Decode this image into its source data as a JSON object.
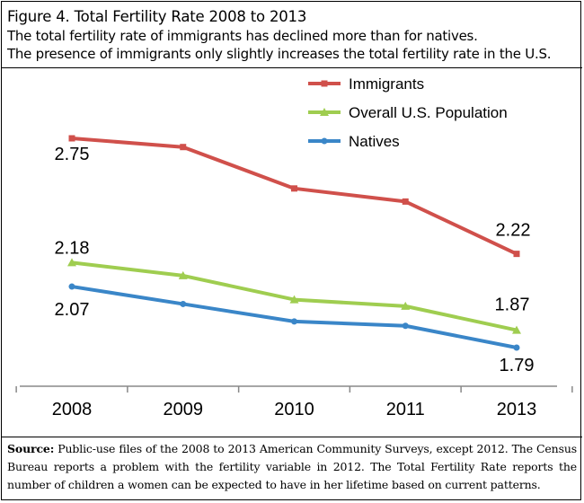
{
  "figure_title": "Figure 4. Total Fertility Rate 2008 to 2013",
  "subtitle_lines": [
    "The total fertility rate of immigrants has declined more than for natives.",
    "The presence of immigrants only slightly increases the total fertility rate in the U.S."
  ],
  "source": {
    "label": "Source:",
    "text": " Public-use files of the 2008 to 2013 American Community Surveys, except 2012. The Census Bureau reports a problem with the fertility variable in 2012. The Total Fertility Rate reports the number of children a women can be expected to have in her lifetime based on current patterns."
  },
  "chart_data": {
    "type": "line",
    "title": "Figure 4. Total Fertility Rate 2008 to 2013",
    "xlabel": "",
    "ylabel": "",
    "categories": [
      "2008",
      "2009",
      "2010",
      "2011",
      "2013"
    ],
    "ylim": [
      1.6,
      2.9
    ],
    "grid": false,
    "legend_position": "top-right",
    "series": [
      {
        "name": "Immigrants",
        "color": "#d0504b",
        "marker": "square",
        "values": [
          2.75,
          2.71,
          2.52,
          2.46,
          2.22
        ],
        "data_labels": [
          "2.75",
          "",
          "",
          "",
          "2.22"
        ]
      },
      {
        "name": "Overall U.S. Population",
        "color": "#9fcd50",
        "marker": "triangle",
        "values": [
          2.18,
          2.12,
          2.01,
          1.98,
          1.87
        ],
        "data_labels": [
          "2.18",
          "",
          "",
          "",
          "1.87"
        ]
      },
      {
        "name": "Natives",
        "color": "#3a86c8",
        "marker": "circle",
        "values": [
          2.07,
          1.99,
          1.91,
          1.89,
          1.79
        ],
        "data_labels": [
          "2.07",
          "",
          "",
          "",
          "1.79"
        ]
      }
    ]
  }
}
